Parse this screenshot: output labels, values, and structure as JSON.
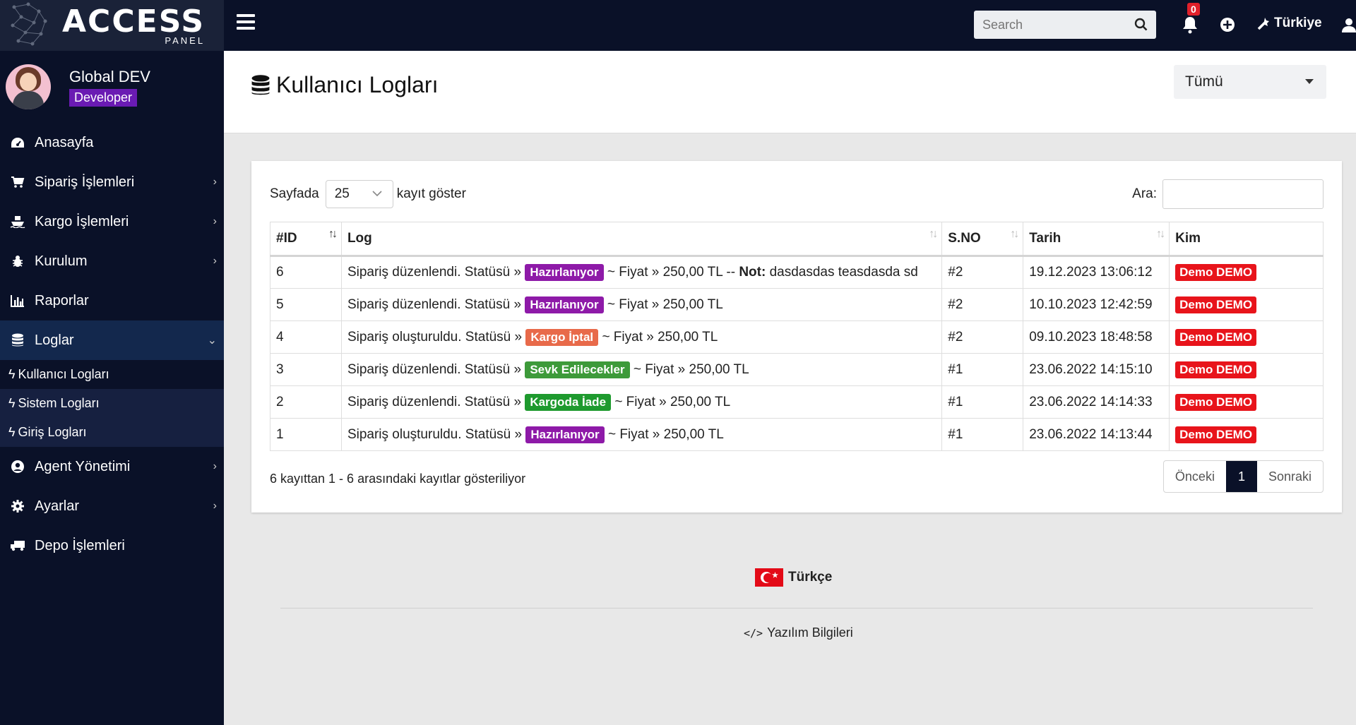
{
  "brand": {
    "title": "ACCESS",
    "subtitle": "PANEL"
  },
  "user": {
    "name": "Global DEV",
    "role": "Developer"
  },
  "sidebar": {
    "items": [
      {
        "label": "Anasayfa",
        "icon": "dashboard-icon"
      },
      {
        "label": "Sipariş İşlemleri",
        "icon": "cart-icon"
      },
      {
        "label": "Kargo İşlemleri",
        "icon": "ship-icon"
      },
      {
        "label": "Kurulum",
        "icon": "bug-icon"
      },
      {
        "label": "Raporlar",
        "icon": "bar-chart-icon"
      },
      {
        "label": "Loglar",
        "icon": "database-icon"
      },
      {
        "label": "Agent Yönetimi",
        "icon": "user-circle-icon"
      },
      {
        "label": "Ayarlar",
        "icon": "gear-icon"
      },
      {
        "label": "Depo İşlemleri",
        "icon": "truck-icon"
      }
    ],
    "submenu": [
      {
        "label": "Kullanıcı Logları"
      },
      {
        "label": "Sistem Logları"
      },
      {
        "label": "Giriş Logları"
      }
    ]
  },
  "topbar": {
    "search_placeholder": "Search",
    "notification_count": "0",
    "language": "Türkiye"
  },
  "page": {
    "title": "Kullanıcı Logları",
    "filter_value": "Tümü"
  },
  "table_controls": {
    "length_prefix": "Sayfada",
    "length_value": "25",
    "length_suffix": "kayıt göster",
    "search_label": "Ara:"
  },
  "table": {
    "columns": [
      "#ID",
      "Log",
      "S.NO",
      "Tarih",
      "Kim"
    ],
    "rows": [
      {
        "id": "6",
        "pre": "Sipariş düzenlendi. Statüsü »",
        "status": "Hazırlanıyor",
        "status_color": "#8e1aa8",
        "post": "~ Fiyat » 250,00 TL --",
        "note_label": "Not:",
        "note": "dasdasdas teasdasda sd",
        "sno": "#2",
        "date": "19.12.2023 13:06:12",
        "who": "Demo DEMO"
      },
      {
        "id": "5",
        "pre": "Sipariş düzenlendi. Statüsü »",
        "status": "Hazırlanıyor",
        "status_color": "#8e1aa8",
        "post": "~ Fiyat » 250,00 TL",
        "note_label": "",
        "note": "",
        "sno": "#2",
        "date": "10.10.2023 12:42:59",
        "who": "Demo DEMO"
      },
      {
        "id": "4",
        "pre": "Sipariş oluşturuldu. Statüsü »",
        "status": "Kargo İptal",
        "status_color": "#e86a4a",
        "post": "~ Fiyat » 250,00 TL",
        "note_label": "",
        "note": "",
        "sno": "#2",
        "date": "09.10.2023 18:48:58",
        "who": "Demo DEMO"
      },
      {
        "id": "3",
        "pre": "Sipariş düzenlendi. Statüsü »",
        "status": "Sevk Edilecekler",
        "status_color": "#3d9a3a",
        "post": "~ Fiyat » 250,00 TL",
        "note_label": "",
        "note": "",
        "sno": "#1",
        "date": "23.06.2022 14:15:10",
        "who": "Demo DEMO"
      },
      {
        "id": "2",
        "pre": "Sipariş düzenlendi. Statüsü »",
        "status": "Kargoda İade",
        "status_color": "#1e9a2e",
        "post": "~ Fiyat » 250,00 TL",
        "note_label": "",
        "note": "",
        "sno": "#1",
        "date": "23.06.2022 14:14:33",
        "who": "Demo DEMO"
      },
      {
        "id": "1",
        "pre": "Sipariş oluşturuldu. Statüsü »",
        "status": "Hazırlanıyor",
        "status_color": "#8e1aa8",
        "post": "~ Fiyat » 250,00 TL",
        "note_label": "",
        "note": "",
        "sno": "#1",
        "date": "23.06.2022 14:13:44",
        "who": "Demo DEMO"
      }
    ]
  },
  "pagination": {
    "info": "6 kayıttan 1 - 6 arasındaki kayıtlar gösteriliyor",
    "prev": "Önceki",
    "current": "1",
    "next": "Sonraki"
  },
  "footer": {
    "language": "Türkçe",
    "software_info": "Yazılım Bilgileri"
  }
}
